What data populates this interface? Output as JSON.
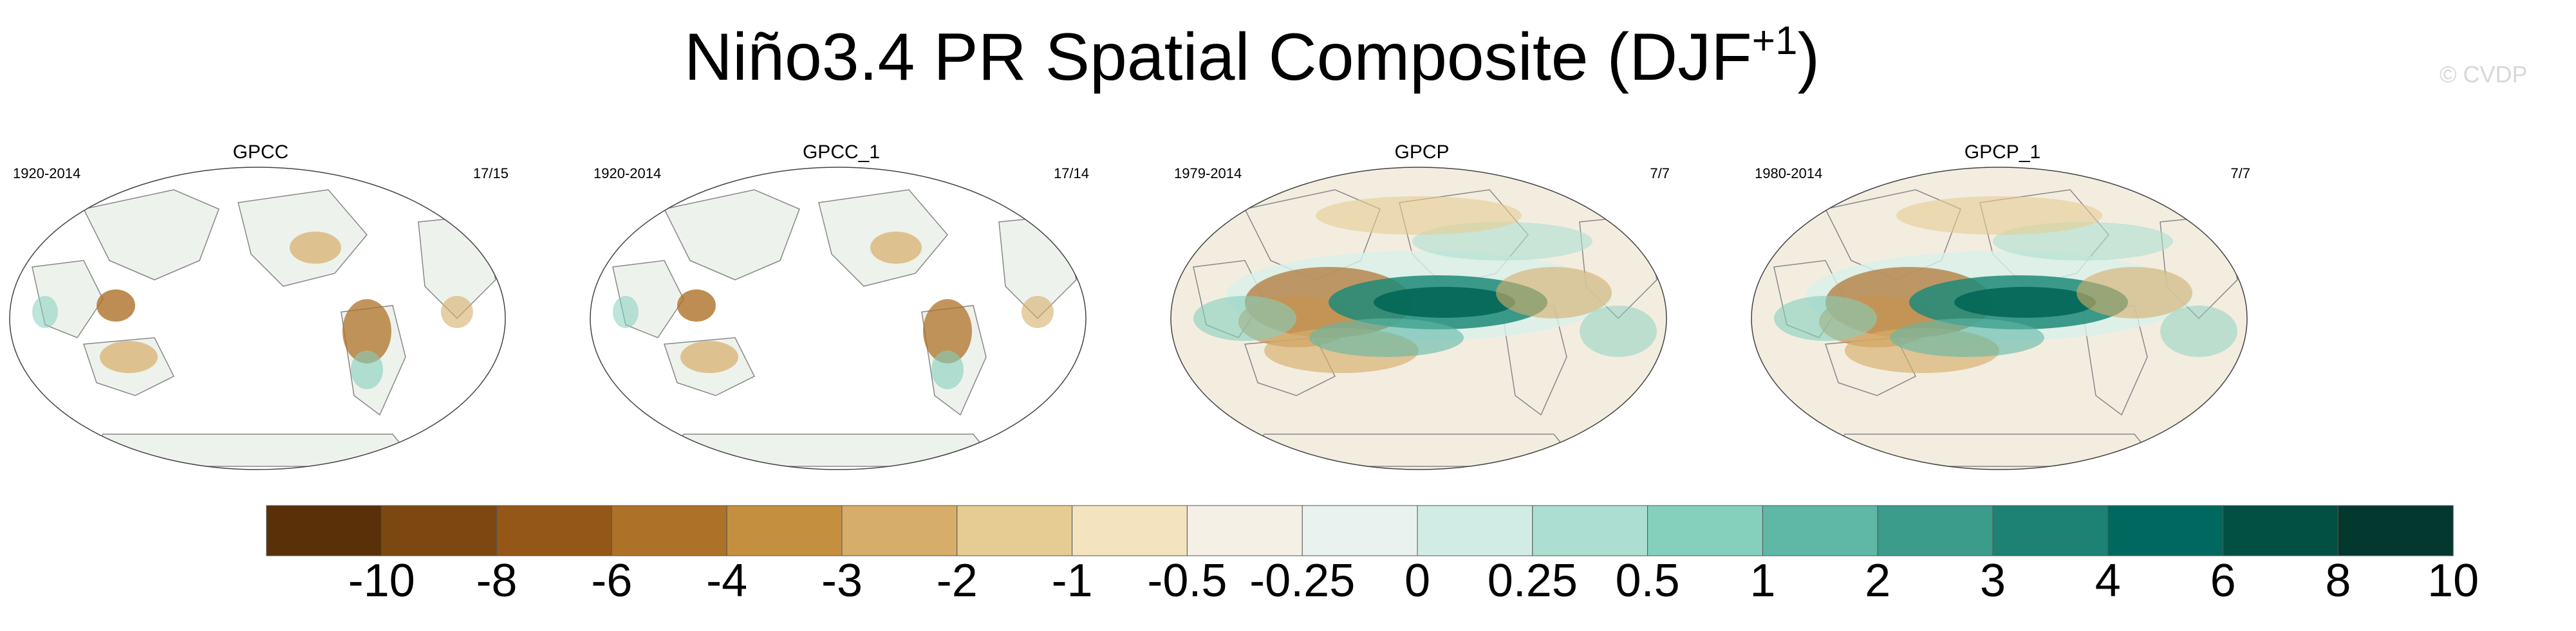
{
  "title": {
    "main": "Niño3.4 PR Spatial Composite (DJF",
    "sup": "+1",
    "close": ")"
  },
  "watermark": "© CVDP",
  "panels": [
    {
      "name": "GPCC",
      "years": "1920-2014",
      "count": "17/15",
      "coverage": "land"
    },
    {
      "name": "GPCC_1",
      "years": "1920-2014",
      "count": "17/14",
      "coverage": "land"
    },
    {
      "name": "GPCP",
      "years": "1979-2014",
      "count": "7/7",
      "coverage": "global"
    },
    {
      "name": "GPCP_1",
      "years": "1980-2014",
      "count": "7/7",
      "coverage": "global"
    }
  ],
  "colorbar": {
    "labels": [
      "-10",
      "-8",
      "-6",
      "-4",
      "-3",
      "-2",
      "-1",
      "-0.5",
      "-0.25",
      "0",
      "0.25",
      "0.5",
      "1",
      "2",
      "3",
      "4",
      "6",
      "8",
      "10"
    ],
    "colors": [
      "#5a3008",
      "#7c4710",
      "#955717",
      "#ae7128",
      "#c48f3f",
      "#d6ae6a",
      "#e6cc93",
      "#f3e4bf",
      "#f5f0e6",
      "#e9f2ee",
      "#d1ece4",
      "#acdfd1",
      "#85cfbd",
      "#5fb7a6",
      "#3b9c8c",
      "#1d8274",
      "#00685e",
      "#024f44",
      "#03382f"
    ]
  }
}
